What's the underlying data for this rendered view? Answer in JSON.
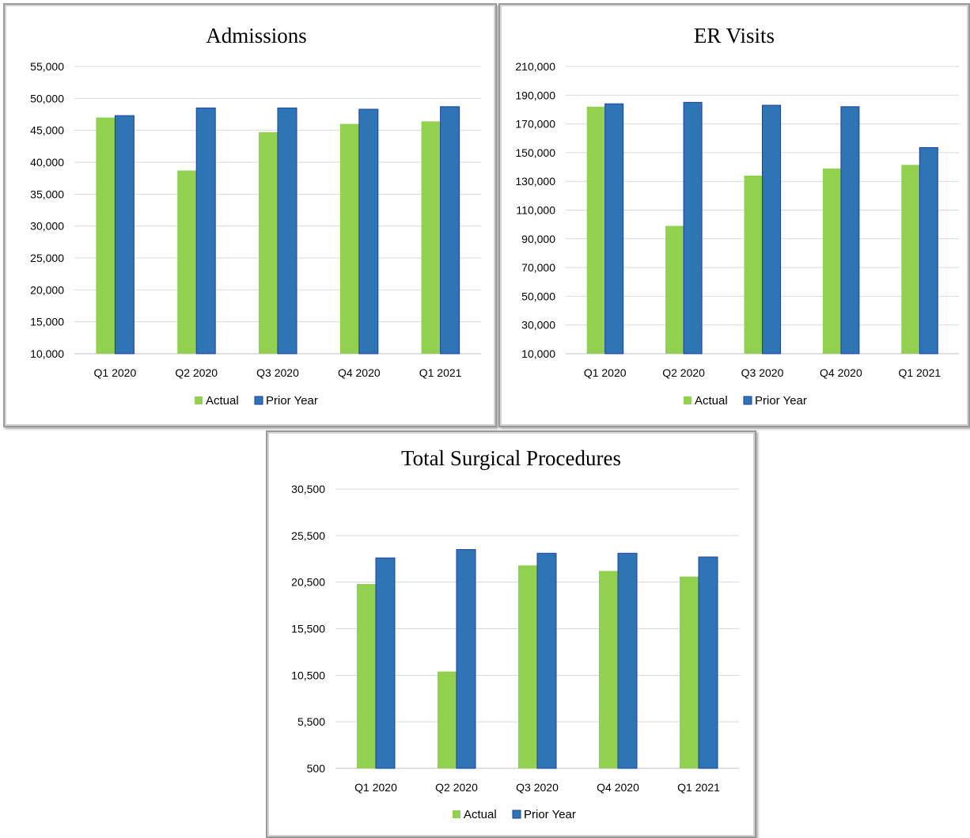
{
  "colors": {
    "actual": "#92d050",
    "prior": "#2e75b6",
    "prior_edge": "#1f3f9f"
  },
  "chart_data": [
    {
      "id": "admissions",
      "type": "bar",
      "title": "Admissions",
      "categories": [
        "Q1 2020",
        "Q2 2020",
        "Q3 2020",
        "Q4 2020",
        "Q1 2021"
      ],
      "series": [
        {
          "name": "Actual",
          "values": [
            47000,
            38700,
            44700,
            46000,
            46400
          ]
        },
        {
          "name": "Prior Year",
          "values": [
            47300,
            48500,
            48500,
            48300,
            48700
          ]
        }
      ],
      "ylim": [
        10000,
        55000
      ],
      "yticks": [
        "10,000",
        "15,000",
        "20,000",
        "25,000",
        "30,000",
        "35,000",
        "40,000",
        "45,000",
        "50,000",
        "55,000"
      ],
      "ytick_values": [
        10000,
        15000,
        20000,
        25000,
        30000,
        35000,
        40000,
        45000,
        50000,
        55000
      ],
      "grid": true,
      "legend_position": "bottom"
    },
    {
      "id": "er-visits",
      "type": "bar",
      "title": "ER Visits",
      "categories": [
        "Q1 2020",
        "Q2 2020",
        "Q3 2020",
        "Q4 2020",
        "Q1 2021"
      ],
      "series": [
        {
          "name": "Actual",
          "values": [
            182000,
            99000,
            134000,
            139000,
            141500
          ]
        },
        {
          "name": "Prior Year",
          "values": [
            184000,
            185000,
            183000,
            182000,
            153500
          ]
        }
      ],
      "ylim": [
        10000,
        210000
      ],
      "yticks": [
        "10,000",
        "30,000",
        "50,000",
        "70,000",
        "90,000",
        "110,000",
        "130,000",
        "150,000",
        "170,000",
        "190,000",
        "210,000"
      ],
      "ytick_values": [
        10000,
        30000,
        50000,
        70000,
        90000,
        110000,
        130000,
        150000,
        170000,
        190000,
        210000
      ],
      "grid": true,
      "legend_position": "bottom"
    },
    {
      "id": "surgical",
      "type": "bar",
      "title": "Total Surgical Procedures",
      "categories": [
        "Q1 2020",
        "Q2 2020",
        "Q3 2020",
        "Q4 2020",
        "Q1 2021"
      ],
      "series": [
        {
          "name": "Actual",
          "values": [
            20300,
            10900,
            22300,
            21700,
            21100
          ]
        },
        {
          "name": "Prior Year",
          "values": [
            23100,
            24000,
            23600,
            23600,
            23200
          ]
        }
      ],
      "ylim": [
        500,
        30500
      ],
      "yticks": [
        "500",
        "5,500",
        "10,500",
        "15,500",
        "20,500",
        "25,500",
        "30,500"
      ],
      "ytick_values": [
        500,
        5500,
        10500,
        15500,
        20500,
        25500,
        30500
      ],
      "grid": true,
      "legend_position": "bottom"
    }
  ]
}
